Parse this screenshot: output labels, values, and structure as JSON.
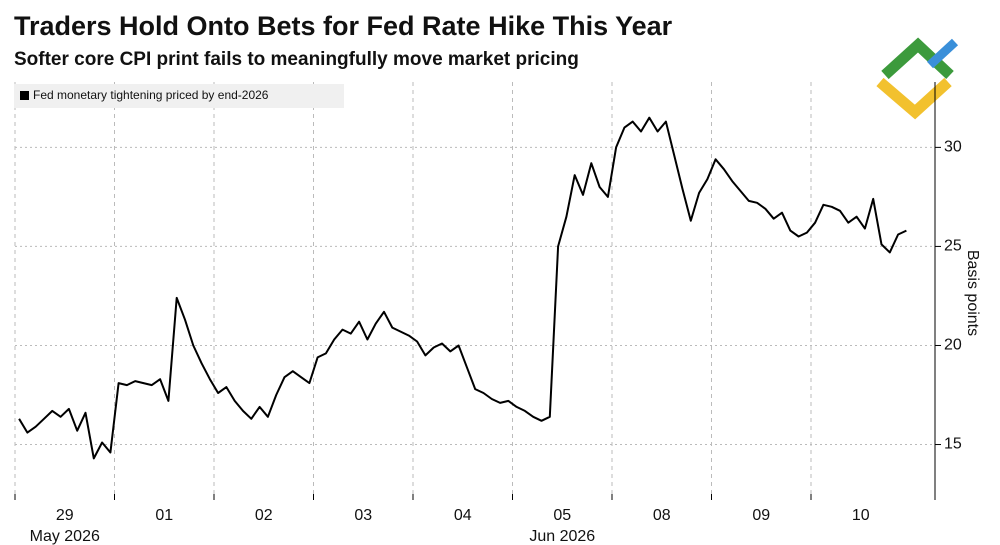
{
  "chart_data": {
    "type": "line",
    "title": "Traders Hold Onto Bets for Fed Rate Hike This Year",
    "subtitle": "Softer core CPI print fails to meaningfully move market pricing",
    "y_label": "Basis points",
    "categories": [
      "29",
      "01",
      "02",
      "03",
      "04",
      "05",
      "08",
      "09",
      "10"
    ],
    "month_labels": [
      "May 2026",
      null,
      null,
      null,
      null,
      "Jun 2026",
      null,
      null,
      null
    ],
    "series": [
      {
        "name": "Fed monetary tightening priced by end-2026",
        "color": "#000000",
        "values": [
          [
            16.3,
            15.6,
            15.9,
            16.3,
            16.7,
            16.4,
            16.8,
            15.7,
            16.6,
            14.3,
            15.1,
            14.6
          ],
          [
            18.1,
            18.0,
            18.2,
            18.1,
            18.0,
            18.3,
            17.2,
            22.4,
            21.3,
            20.0,
            19.1,
            18.3
          ],
          [
            17.6,
            17.9,
            17.2,
            16.7,
            16.3,
            16.9,
            16.4,
            17.5,
            18.4,
            18.7,
            18.4,
            18.1
          ],
          [
            19.4,
            19.6,
            20.3,
            20.8,
            20.6,
            21.2,
            20.3,
            21.1,
            21.7,
            20.9,
            20.7,
            20.5
          ],
          [
            20.2,
            19.5,
            19.9,
            20.1,
            19.7,
            20.0,
            18.9,
            17.8,
            17.6,
            17.3,
            17.1,
            17.2
          ],
          [
            16.9,
            16.7,
            16.4,
            16.2,
            16.4,
            25.0,
            26.5,
            28.6,
            27.6,
            29.2,
            28.0,
            27.5
          ],
          [
            30.0,
            31.0,
            31.3,
            30.8,
            31.5,
            30.8,
            31.3,
            29.6,
            27.9,
            26.3,
            27.7,
            28.4
          ],
          [
            29.4,
            28.9,
            28.3,
            27.8,
            27.3,
            27.2,
            26.9,
            26.4,
            26.7,
            25.8,
            25.5,
            25.7
          ],
          [
            26.2,
            27.1,
            27.0,
            26.8,
            26.2,
            26.5,
            25.9,
            27.4,
            25.1,
            24.7,
            25.6,
            25.8
          ]
        ]
      }
    ],
    "ylim": [
      12.2,
      33.3
    ],
    "yticks": [
      15,
      20,
      25,
      30
    ],
    "grid": true,
    "y_axis_side": "right",
    "legend": "top-left"
  }
}
